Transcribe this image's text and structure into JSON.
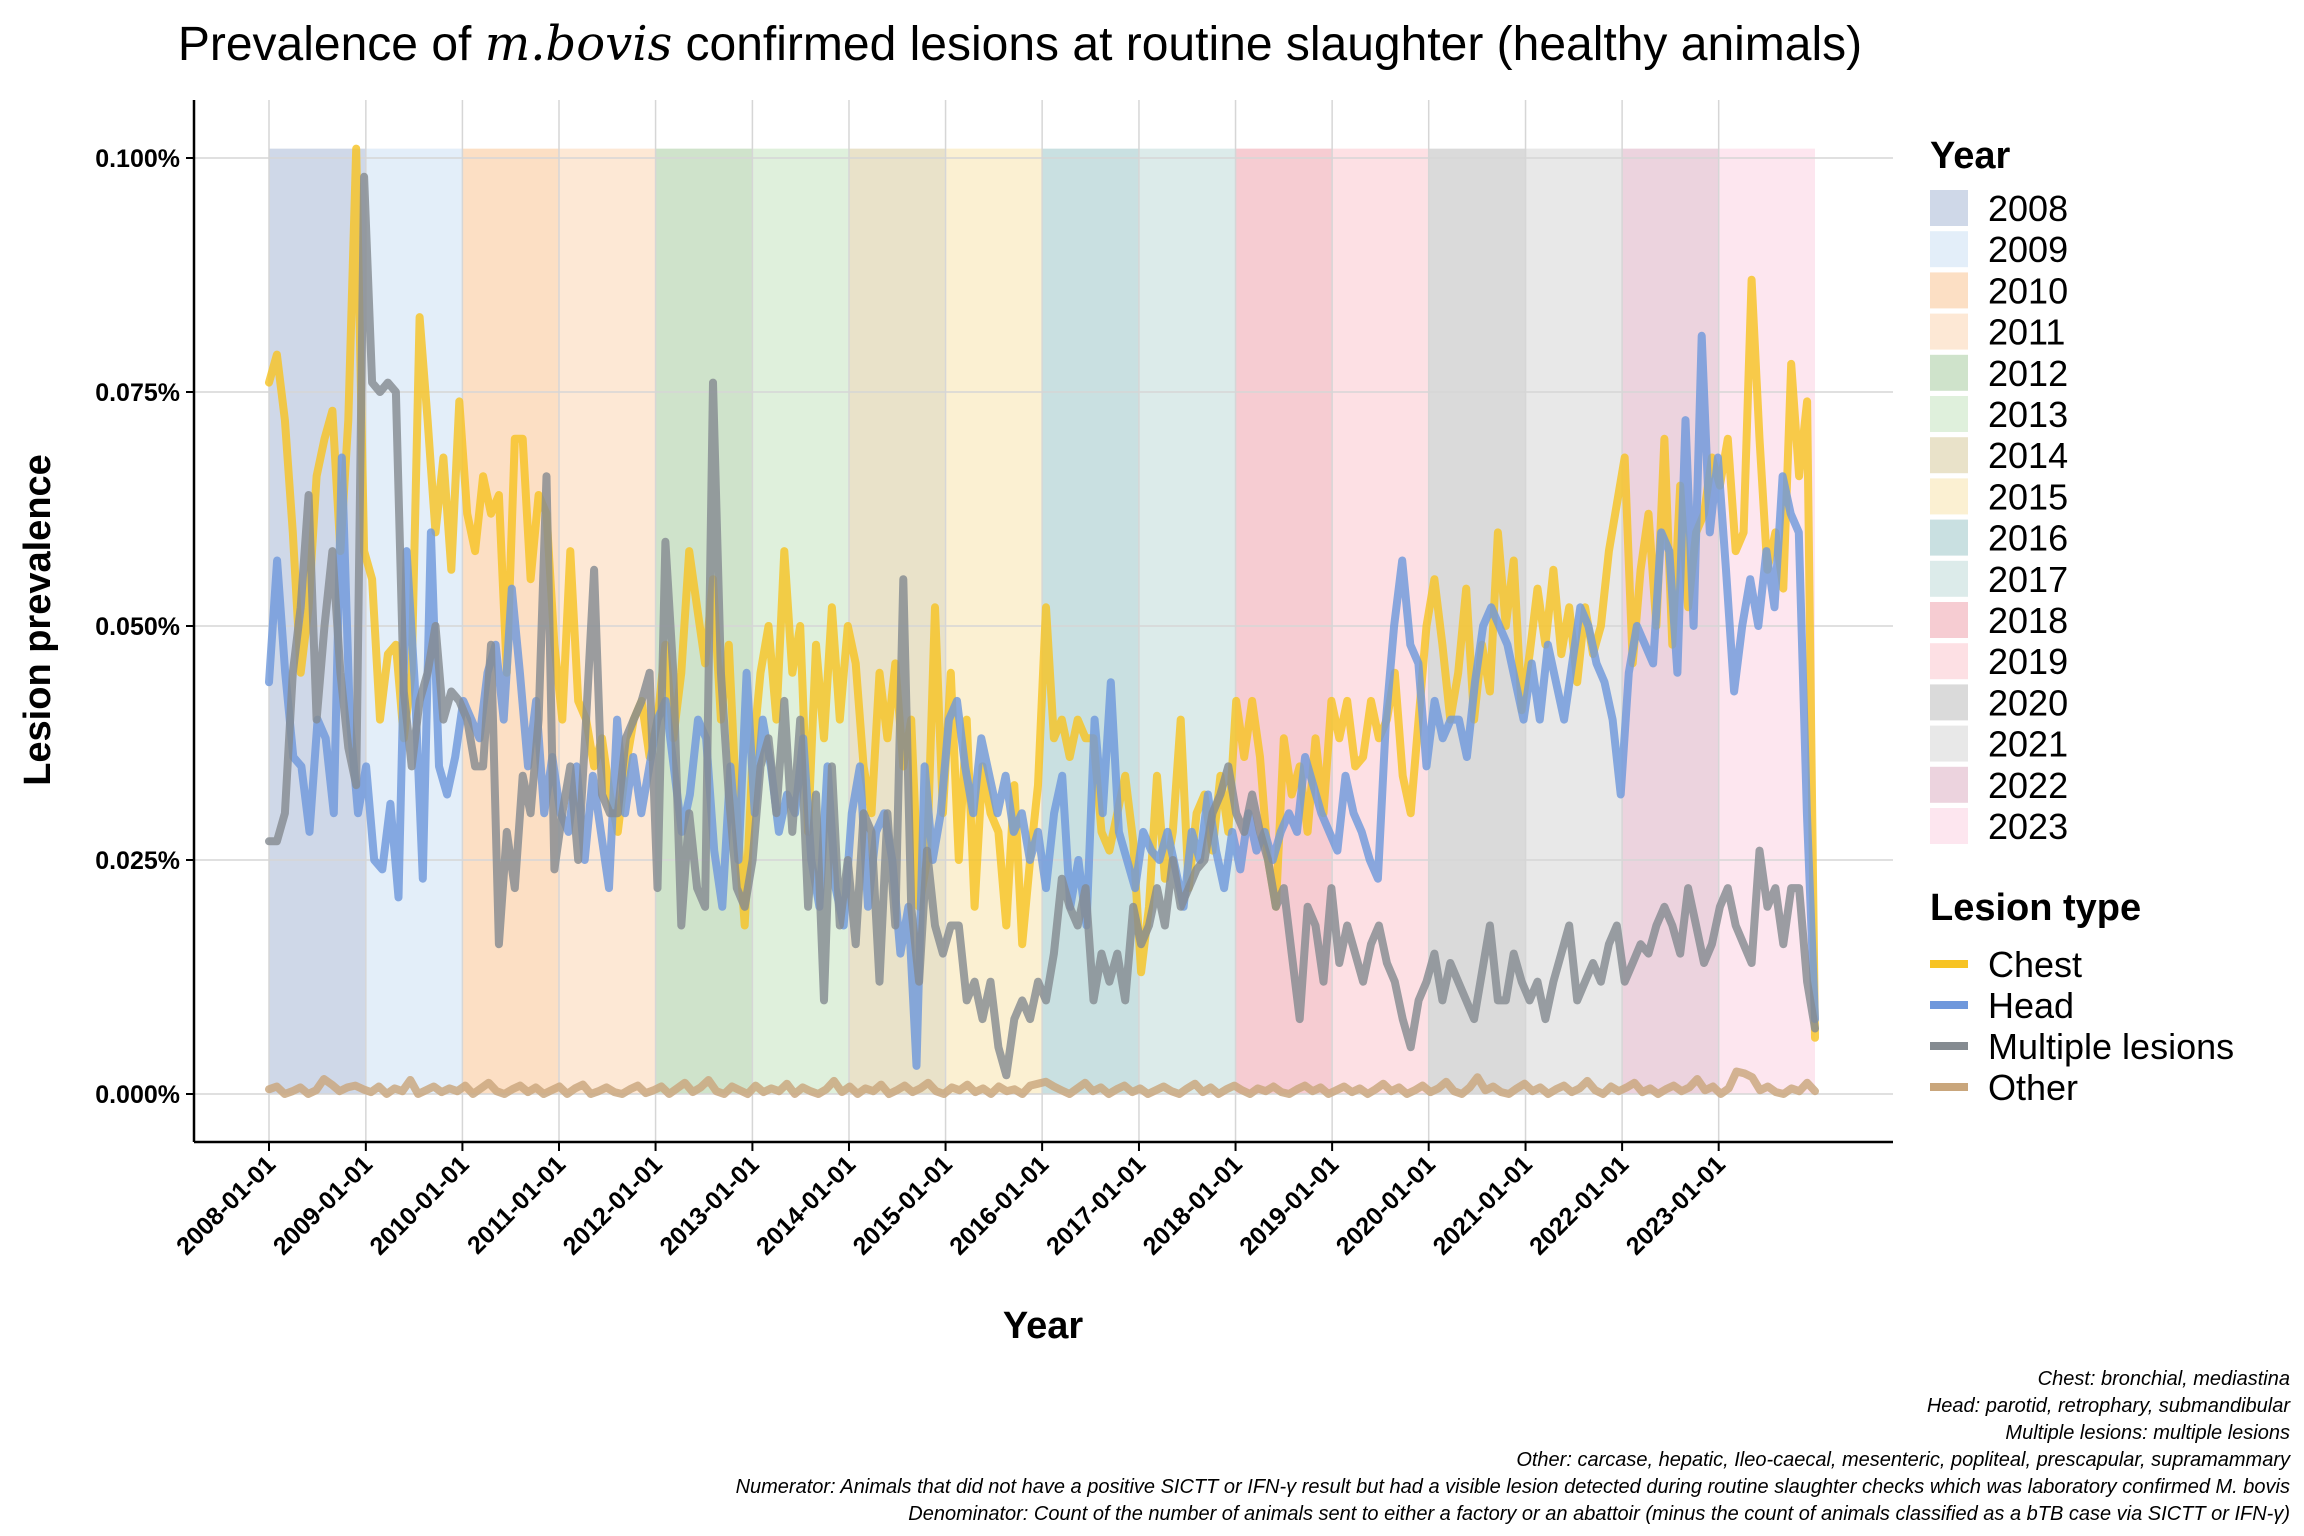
{
  "chart_data": {
    "type": "line",
    "title_parts": [
      "Prevalence of ",
      "m.bovis",
      " confirmed lesions at routine slaughter (healthy animals)"
    ],
    "xlabel": "Year",
    "ylabel": "Lesion prevalence",
    "x_range": [
      "2008-01-01",
      "2023-12-31"
    ],
    "x_ticks": [
      "2008-01-01",
      "2009-01-01",
      "2010-01-01",
      "2011-01-01",
      "2012-01-01",
      "2013-01-01",
      "2014-01-01",
      "2015-01-01",
      "2016-01-01",
      "2017-01-01",
      "2018-01-01",
      "2019-01-01",
      "2020-01-01",
      "2021-01-01",
      "2022-01-01",
      "2023-01-01"
    ],
    "y_ticks": [
      {
        "value": 0.0,
        "label": "0.000%"
      },
      {
        "value": 0.025,
        "label": "0.025%"
      },
      {
        "value": 0.05,
        "label": "0.050%"
      },
      {
        "value": 0.075,
        "label": "0.075%"
      },
      {
        "value": 0.1,
        "label": "0.100%"
      }
    ],
    "ylim": [
      -0.005,
      0.106
    ],
    "grid": true,
    "legend_placement": "right",
    "year_bands": {
      "title": "Year",
      "items": [
        {
          "label": "2008",
          "color": "#cfd8e8"
        },
        {
          "label": "2009",
          "color": "#e3eef9"
        },
        {
          "label": "2010",
          "color": "#fcdfc4"
        },
        {
          "label": "2011",
          "color": "#fde8d5"
        },
        {
          "label": "2012",
          "color": "#cfe3cb"
        },
        {
          "label": "2013",
          "color": "#dff0dc"
        },
        {
          "label": "2014",
          "color": "#e9e2c9"
        },
        {
          "label": "2015",
          "color": "#fbf0d2"
        },
        {
          "label": "2016",
          "color": "#c9e0e1"
        },
        {
          "label": "2017",
          "color": "#dcebea"
        },
        {
          "label": "2018",
          "color": "#f6ccd2"
        },
        {
          "label": "2019",
          "color": "#fde0e4"
        },
        {
          "label": "2020",
          "color": "#dadada"
        },
        {
          "label": "2021",
          "color": "#e8e8e8"
        },
        {
          "label": "2022",
          "color": "#ecd3de"
        },
        {
          "label": "2023",
          "color": "#fde6ef"
        }
      ]
    },
    "lesion_legend": {
      "title": "Lesion type",
      "items": [
        {
          "label": "Chest",
          "color": "#f7c324"
        },
        {
          "label": "Head",
          "color": "#6f98dc"
        },
        {
          "label": "Multiple lesions",
          "color": "#858b91"
        },
        {
          "label": "Other",
          "color": "#c9a67c"
        }
      ]
    },
    "series": [
      {
        "key": "chest",
        "color": "#f7c324",
        "values": [
          0.076,
          0.079,
          0.072,
          0.06,
          0.045,
          0.052,
          0.066,
          0.07,
          0.073,
          0.058,
          0.072,
          0.101,
          0.058,
          0.055,
          0.04,
          0.047,
          0.048,
          0.038,
          0.045,
          0.083,
          0.072,
          0.06,
          0.068,
          0.056,
          0.074,
          0.062,
          0.058,
          0.066,
          0.062,
          0.064,
          0.045,
          0.07,
          0.07,
          0.055,
          0.064,
          0.062,
          0.048,
          0.04,
          0.058,
          0.042,
          0.04,
          0.035,
          0.038,
          0.032,
          0.028,
          0.035,
          0.04,
          0.042,
          0.036,
          0.04,
          0.048,
          0.038,
          0.045,
          0.058,
          0.052,
          0.046,
          0.055,
          0.04,
          0.048,
          0.03,
          0.018,
          0.036,
          0.045,
          0.05,
          0.04,
          0.058,
          0.045,
          0.05,
          0.028,
          0.048,
          0.038,
          0.052,
          0.04,
          0.05,
          0.046,
          0.035,
          0.03,
          0.045,
          0.038,
          0.046,
          0.035,
          0.04,
          0.02,
          0.025,
          0.052,
          0.03,
          0.045,
          0.025,
          0.04,
          0.02,
          0.035,
          0.03,
          0.028,
          0.018,
          0.033,
          0.016,
          0.025,
          0.033,
          0.052,
          0.038,
          0.04,
          0.036,
          0.04,
          0.038,
          0.038,
          0.028,
          0.026,
          0.03,
          0.034,
          0.027,
          0.013,
          0.02,
          0.034,
          0.023,
          0.028,
          0.04,
          0.022,
          0.03,
          0.032,
          0.026,
          0.034,
          0.028,
          0.042,
          0.036,
          0.042,
          0.036,
          0.025,
          0.02,
          0.038,
          0.032,
          0.035,
          0.028,
          0.038,
          0.03,
          0.042,
          0.038,
          0.042,
          0.035,
          0.036,
          0.042,
          0.038,
          0.04,
          0.045,
          0.034,
          0.03,
          0.04,
          0.05,
          0.055,
          0.048,
          0.04,
          0.045,
          0.054,
          0.04,
          0.048,
          0.043,
          0.06,
          0.05,
          0.057,
          0.041,
          0.047,
          0.054,
          0.048,
          0.056,
          0.047,
          0.052,
          0.044,
          0.052,
          0.047,
          0.05,
          0.058,
          0.063,
          0.068,
          0.046,
          0.056,
          0.062,
          0.05,
          0.07,
          0.048,
          0.065,
          0.052,
          0.06,
          0.062,
          0.068,
          0.065,
          0.07,
          0.058,
          0.06,
          0.087,
          0.07,
          0.056,
          0.06,
          0.054,
          0.078,
          0.066,
          0.074,
          0.006
        ]
      },
      {
        "key": "head",
        "color": "#6f98dc",
        "values": [
          0.044,
          0.057,
          0.045,
          0.036,
          0.035,
          0.028,
          0.04,
          0.038,
          0.03,
          0.068,
          0.04,
          0.03,
          0.035,
          0.025,
          0.024,
          0.031,
          0.021,
          0.058,
          0.044,
          0.023,
          0.06,
          0.035,
          0.032,
          0.036,
          0.042,
          0.04,
          0.038,
          0.045,
          0.048,
          0.04,
          0.054,
          0.045,
          0.035,
          0.042,
          0.03,
          0.036,
          0.03,
          0.028,
          0.035,
          0.025,
          0.034,
          0.028,
          0.022,
          0.04,
          0.03,
          0.036,
          0.03,
          0.035,
          0.04,
          0.042,
          0.035,
          0.028,
          0.032,
          0.04,
          0.038,
          0.026,
          0.02,
          0.035,
          0.025,
          0.045,
          0.03,
          0.04,
          0.035,
          0.028,
          0.032,
          0.03,
          0.038,
          0.025,
          0.02,
          0.035,
          0.022,
          0.018,
          0.03,
          0.035,
          0.02,
          0.028,
          0.03,
          0.025,
          0.015,
          0.02,
          0.003,
          0.035,
          0.025,
          0.03,
          0.04,
          0.042,
          0.035,
          0.03,
          0.038,
          0.034,
          0.03,
          0.034,
          0.028,
          0.03,
          0.025,
          0.028,
          0.022,
          0.03,
          0.034,
          0.02,
          0.025,
          0.018,
          0.04,
          0.03,
          0.044,
          0.028,
          0.025,
          0.022,
          0.028,
          0.026,
          0.025,
          0.028,
          0.024,
          0.02,
          0.028,
          0.025,
          0.032,
          0.026,
          0.022,
          0.028,
          0.024,
          0.03,
          0.026,
          0.028,
          0.025,
          0.028,
          0.03,
          0.028,
          0.036,
          0.033,
          0.03,
          0.028,
          0.026,
          0.034,
          0.03,
          0.028,
          0.025,
          0.023,
          0.04,
          0.05,
          0.057,
          0.048,
          0.046,
          0.035,
          0.042,
          0.038,
          0.04,
          0.04,
          0.036,
          0.044,
          0.05,
          0.052,
          0.05,
          0.048,
          0.044,
          0.04,
          0.046,
          0.04,
          0.048,
          0.044,
          0.04,
          0.046,
          0.052,
          0.05,
          0.046,
          0.044,
          0.04,
          0.032,
          0.045,
          0.05,
          0.048,
          0.046,
          0.06,
          0.058,
          0.045,
          0.072,
          0.05,
          0.081,
          0.06,
          0.068,
          0.056,
          0.043,
          0.05,
          0.055,
          0.05,
          0.058,
          0.052,
          0.066,
          0.062,
          0.06,
          0.03,
          0.008
        ]
      },
      {
        "key": "multiple",
        "color": "#858b91",
        "values": [
          0.027,
          0.027,
          0.03,
          0.045,
          0.052,
          0.064,
          0.04,
          0.05,
          0.058,
          0.045,
          0.037,
          0.033,
          0.098,
          0.076,
          0.075,
          0.076,
          0.075,
          0.043,
          0.035,
          0.042,
          0.045,
          0.05,
          0.04,
          0.043,
          0.042,
          0.04,
          0.035,
          0.035,
          0.048,
          0.016,
          0.028,
          0.022,
          0.034,
          0.03,
          0.04,
          0.066,
          0.024,
          0.03,
          0.035,
          0.025,
          0.04,
          0.056,
          0.032,
          0.03,
          0.03,
          0.038,
          0.04,
          0.042,
          0.045,
          0.022,
          0.059,
          0.045,
          0.018,
          0.03,
          0.022,
          0.02,
          0.076,
          0.045,
          0.032,
          0.022,
          0.02,
          0.025,
          0.035,
          0.038,
          0.03,
          0.042,
          0.028,
          0.04,
          0.02,
          0.032,
          0.01,
          0.035,
          0.018,
          0.025,
          0.016,
          0.03,
          0.028,
          0.012,
          0.03,
          0.018,
          0.055,
          0.02,
          0.012,
          0.026,
          0.018,
          0.015,
          0.018,
          0.018,
          0.01,
          0.012,
          0.008,
          0.012,
          0.005,
          0.002,
          0.008,
          0.01,
          0.008,
          0.012,
          0.01,
          0.015,
          0.023,
          0.02,
          0.018,
          0.022,
          0.01,
          0.015,
          0.012,
          0.015,
          0.01,
          0.02,
          0.016,
          0.018,
          0.022,
          0.018,
          0.025,
          0.02,
          0.022,
          0.024,
          0.025,
          0.03,
          0.032,
          0.035,
          0.03,
          0.028,
          0.032,
          0.028,
          0.025,
          0.02,
          0.022,
          0.015,
          0.008,
          0.02,
          0.018,
          0.012,
          0.022,
          0.014,
          0.018,
          0.015,
          0.012,
          0.016,
          0.018,
          0.014,
          0.012,
          0.008,
          0.005,
          0.01,
          0.012,
          0.015,
          0.01,
          0.014,
          0.012,
          0.01,
          0.008,
          0.013,
          0.018,
          0.01,
          0.01,
          0.015,
          0.012,
          0.01,
          0.012,
          0.008,
          0.012,
          0.015,
          0.018,
          0.01,
          0.012,
          0.014,
          0.012,
          0.016,
          0.018,
          0.012,
          0.014,
          0.016,
          0.015,
          0.018,
          0.02,
          0.018,
          0.015,
          0.022,
          0.018,
          0.014,
          0.016,
          0.02,
          0.022,
          0.018,
          0.016,
          0.014,
          0.026,
          0.02,
          0.022,
          0.016,
          0.022,
          0.022,
          0.012,
          0.007
        ]
      },
      {
        "key": "other",
        "color": "#c9a67c",
        "values": [
          0.0005,
          0.0008,
          0.0,
          0.0003,
          0.0007,
          0.0,
          0.0004,
          0.0016,
          0.001,
          0.0003,
          0.0007,
          0.0009,
          0.0005,
          0.0002,
          0.0008,
          0.0,
          0.0006,
          0.0003,
          0.0015,
          0.0,
          0.0004,
          0.0008,
          0.0002,
          0.0006,
          0.0003,
          0.0009,
          0.0,
          0.0006,
          0.0012,
          0.0003,
          0.0,
          0.0005,
          0.0009,
          0.0002,
          0.0007,
          0.0,
          0.0004,
          0.0008,
          0.0,
          0.0006,
          0.001,
          0.0,
          0.0003,
          0.0007,
          0.0002,
          0.0,
          0.0005,
          0.0009,
          0.0001,
          0.0004,
          0.0008,
          0.0,
          0.0006,
          0.0012,
          0.0002,
          0.0007,
          0.0015,
          0.0003,
          0.0,
          0.0008,
          0.0004,
          0.0,
          0.0009,
          0.0002,
          0.0006,
          0.0003,
          0.0011,
          0.0,
          0.0007,
          0.0003,
          0.0,
          0.0005,
          0.0014,
          0.0002,
          0.0008,
          0.0,
          0.0006,
          0.0003,
          0.001,
          0.0,
          0.0004,
          0.0009,
          0.0002,
          0.0006,
          0.0012,
          0.0003,
          0.0,
          0.0007,
          0.0004,
          0.001,
          0.0002,
          0.0006,
          0.0,
          0.0008,
          0.0003,
          0.0005,
          0.0,
          0.0009,
          0.0011,
          0.0013,
          0.0008,
          0.0004,
          0.0,
          0.0006,
          0.0012,
          0.0003,
          0.0007,
          0.0,
          0.0005,
          0.0009,
          0.0002,
          0.0006,
          0.0,
          0.0004,
          0.0008,
          0.0003,
          0.0,
          0.0006,
          0.0011,
          0.0002,
          0.0007,
          0.0,
          0.0005,
          0.0009,
          0.0004,
          0.0,
          0.0006,
          0.0003,
          0.0008,
          0.0002,
          0.0,
          0.0005,
          0.0009,
          0.0003,
          0.0007,
          0.0,
          0.0004,
          0.0008,
          0.0002,
          0.0006,
          0.0,
          0.0005,
          0.0011,
          0.0003,
          0.0007,
          0.0,
          0.0004,
          0.0009,
          0.0002,
          0.0006,
          0.0013,
          0.0003,
          0.0,
          0.0007,
          0.0018,
          0.0004,
          0.0008,
          0.0002,
          0.0,
          0.0006,
          0.0011,
          0.0003,
          0.0007,
          0.0,
          0.0005,
          0.0009,
          0.0002,
          0.0006,
          0.0014,
          0.0004,
          0.0,
          0.0008,
          0.0003,
          0.0007,
          0.0012,
          0.0002,
          0.0006,
          0.0,
          0.0005,
          0.0009,
          0.0003,
          0.0007,
          0.0016,
          0.0004,
          0.0008,
          0.0,
          0.0006,
          0.0024,
          0.0022,
          0.0018,
          0.0004,
          0.0008,
          0.0002,
          0.0,
          0.0006,
          0.0003,
          0.0012,
          0.0003
        ]
      }
    ],
    "caption_lines": [
      "Chest: bronchial, mediastina",
      "Head: parotid, retrophary, submandibular",
      "Multiple lesions: multiple lesions",
      "Other: carcase, hepatic, Ileo-caecal, mesenteric, popliteal, prescapular, supramammary",
      "Numerator: Animals that did not have a positive SICTT or IFN-γ result but had a visible lesion detected during routine slaughter checks which was laboratory confirmed M. bovis",
      "Denominator: Count of the number of animals sent to either a factory or an abattoir (minus the count of animals classified as a bTB case via SICTT or IFN-γ)"
    ]
  }
}
